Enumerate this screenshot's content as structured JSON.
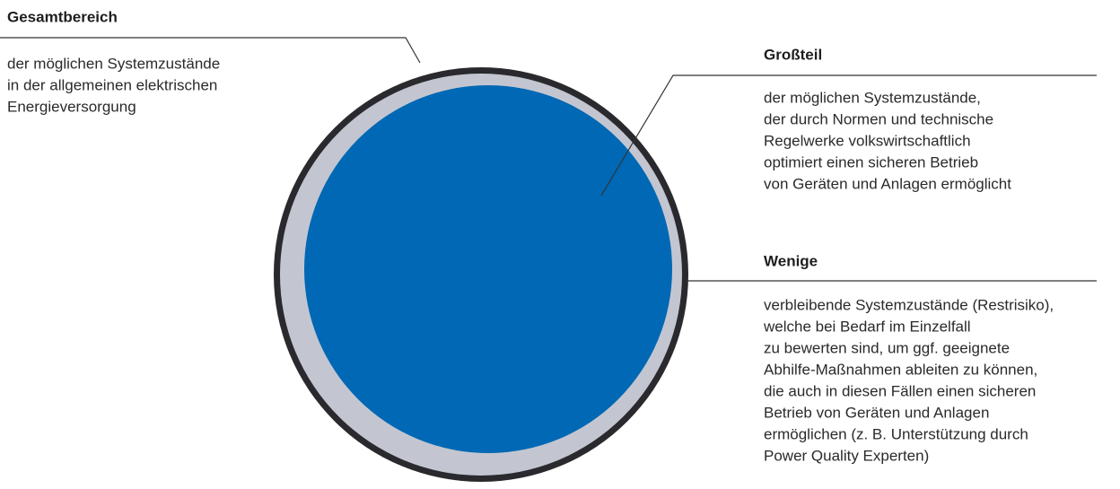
{
  "annotations": [
    {
      "title": "Gesamtbereich",
      "lines": [
        "der möglichen Systemzustände",
        "in der allgemeinen elektrischen",
        "Energieversorgung"
      ]
    },
    {
      "title": "Großteil",
      "lines": [
        "der möglichen Systemzustände,",
        "der durch Normen und technische",
        "Regelwerke volkswirtschaftlich",
        "optimiert einen sicheren Betrieb",
        "von Geräten und Anlagen ermöglicht"
      ]
    },
    {
      "title": "Wenige",
      "lines": [
        "verbleibende Systemzustände (Restrisiko),",
        "welche bei Bedarf im Einzelfall",
        "zu bewerten sind, um ggf. geeignete",
        "Abhilfe-Maßnahmen ableiten zu können,",
        "die auch in diesen Fällen einen sicheren",
        "Betrieb von Geräten und Anlagen",
        "ermöglichen (z. B. Unterstützung durch",
        "Power Quality Experten)"
      ]
    }
  ]
}
